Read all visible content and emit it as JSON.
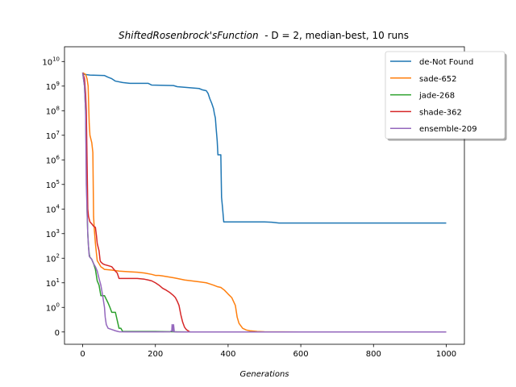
{
  "chart_data": {
    "type": "line",
    "title_italic": "ShiftedRosenbrock'sFunction",
    "title_rest": "  - D = 2, median-best, 10 runs",
    "xlabel": "Generations",
    "ylabel": "",
    "xlim": [
      -50,
      1050
    ],
    "x_ticks": [
      0,
      200,
      400,
      600,
      800,
      1000
    ],
    "y_scale": "symlog",
    "y_ticks": [
      {
        "value": 0,
        "label": "0"
      },
      {
        "value": 1,
        "label": "10",
        "exp": "0"
      },
      {
        "value": 10,
        "label": "10",
        "exp": "1"
      },
      {
        "value": 100,
        "label": "10",
        "exp": "2"
      },
      {
        "value": 1000,
        "label": "10",
        "exp": "3"
      },
      {
        "value": 10000,
        "label": "10",
        "exp": "4"
      },
      {
        "value": 100000,
        "label": "10",
        "exp": "5"
      },
      {
        "value": 1000000,
        "label": "10",
        "exp": "6"
      },
      {
        "value": 10000000,
        "label": "10",
        "exp": "7"
      },
      {
        "value": 100000000,
        "label": "10",
        "exp": "8"
      },
      {
        "value": 1000000000,
        "label": "10",
        "exp": "9"
      },
      {
        "value": 10000000000,
        "label": "10",
        "exp": "10"
      }
    ],
    "legend_position": "top-right",
    "grid": false,
    "series": [
      {
        "name": "de-Not Found",
        "color": "#1f77b4",
        "points": [
          [
            0,
            3500000000.0
          ],
          [
            5,
            3000000000.0
          ],
          [
            20,
            2800000000.0
          ],
          [
            60,
            2700000000.0
          ],
          [
            70,
            2300000000.0
          ],
          [
            80,
            2000000000.0
          ],
          [
            90,
            1600000000.0
          ],
          [
            110,
            1400000000.0
          ],
          [
            130,
            1300000000.0
          ],
          [
            180,
            1300000000.0
          ],
          [
            190,
            1100000000.0
          ],
          [
            250,
            1050000000.0
          ],
          [
            260,
            950000000.0
          ],
          [
            300,
            850000000.0
          ],
          [
            320,
            800000000.0
          ],
          [
            330,
            700000000.0
          ],
          [
            340,
            650000000.0
          ],
          [
            345,
            500000000.0
          ],
          [
            350,
            300000000.0
          ],
          [
            355,
            200000000.0
          ],
          [
            360,
            120000000.0
          ],
          [
            362,
            80000000.0
          ],
          [
            365,
            50000000.0
          ],
          [
            367,
            20000000.0
          ],
          [
            370,
            6000000.0
          ],
          [
            372,
            1600000.0
          ],
          [
            380,
            1600000.0
          ],
          [
            382,
            30000.0
          ],
          [
            385,
            10000.0
          ],
          [
            388,
            3000
          ],
          [
            400,
            3000
          ],
          [
            500,
            3000
          ],
          [
            520,
            2900
          ],
          [
            540,
            2700
          ],
          [
            600,
            2700
          ],
          [
            800,
            2700
          ],
          [
            1000,
            2700
          ]
        ]
      },
      {
        "name": "sade-652",
        "color": "#ff7f0e",
        "points": [
          [
            0,
            3500000000.0
          ],
          [
            8,
            3000000000.0
          ],
          [
            12,
            2000000000.0
          ],
          [
            15,
            1000000000.0
          ],
          [
            18,
            30000000.0
          ],
          [
            20,
            10000000.0
          ],
          [
            25,
            5000000.0
          ],
          [
            28,
            2000000.0
          ],
          [
            30,
            5000
          ],
          [
            32,
            1500
          ],
          [
            35,
            400
          ],
          [
            38,
            150
          ],
          [
            40,
            80
          ],
          [
            45,
            60
          ],
          [
            50,
            45
          ],
          [
            55,
            40
          ],
          [
            60,
            35
          ],
          [
            80,
            33
          ],
          [
            100,
            30
          ],
          [
            130,
            28
          ],
          [
            150,
            27
          ],
          [
            170,
            25
          ],
          [
            190,
            22
          ],
          [
            200,
            20
          ],
          [
            210,
            20
          ],
          [
            220,
            19
          ],
          [
            230,
            18
          ],
          [
            250,
            16
          ],
          [
            260,
            15
          ],
          [
            280,
            13
          ],
          [
            300,
            12
          ],
          [
            320,
            11
          ],
          [
            340,
            10
          ],
          [
            350,
            9
          ],
          [
            360,
            8
          ],
          [
            370,
            7
          ],
          [
            380,
            6.5
          ],
          [
            390,
            5
          ],
          [
            400,
            3.5
          ],
          [
            410,
            2.5
          ],
          [
            420,
            1.2
          ],
          [
            425,
            0.6
          ],
          [
            430,
            0.35
          ],
          [
            440,
            0.15
          ],
          [
            450,
            0.08
          ],
          [
            460,
            0.05
          ],
          [
            480,
            0.02
          ],
          [
            500,
            0.01
          ],
          [
            550,
            0.005
          ],
          [
            600,
            0
          ],
          [
            1000,
            0
          ]
        ]
      },
      {
        "name": "jade-268",
        "color": "#2ca02c",
        "points": [
          [
            0,
            3500000000.0
          ],
          [
            5,
            1000000000.0
          ],
          [
            8,
            100000000.0
          ],
          [
            10,
            1000000.0
          ],
          [
            12,
            10000.0
          ],
          [
            14,
            1000
          ],
          [
            16,
            300
          ],
          [
            18,
            150
          ],
          [
            20,
            110
          ],
          [
            25,
            90
          ],
          [
            30,
            60
          ],
          [
            35,
            35
          ],
          [
            40,
            12
          ],
          [
            45,
            8
          ],
          [
            50,
            3
          ],
          [
            60,
            3
          ],
          [
            70,
            1.5
          ],
          [
            75,
            1
          ],
          [
            80,
            0.8
          ],
          [
            90,
            0.8
          ],
          [
            100,
            0.15
          ],
          [
            105,
            0.15
          ],
          [
            110,
            0.02
          ],
          [
            120,
            0.02
          ],
          [
            150,
            0.02
          ],
          [
            200,
            0.02
          ],
          [
            250,
            0.01
          ],
          [
            300,
            0
          ],
          [
            1000,
            0
          ]
        ]
      },
      {
        "name": "shade-362",
        "color": "#d62728",
        "points": [
          [
            0,
            3500000000.0
          ],
          [
            5,
            2000000000.0
          ],
          [
            8,
            500000000.0
          ],
          [
            10,
            100000000.0
          ],
          [
            12,
            1000000.0
          ],
          [
            14,
            10000.0
          ],
          [
            16,
            5000
          ],
          [
            20,
            3000
          ],
          [
            25,
            2500
          ],
          [
            30,
            2000
          ],
          [
            35,
            1800
          ],
          [
            38,
            800
          ],
          [
            40,
            400
          ],
          [
            45,
            200
          ],
          [
            48,
            80
          ],
          [
            50,
            70
          ],
          [
            55,
            60
          ],
          [
            60,
            55
          ],
          [
            70,
            50
          ],
          [
            80,
            45
          ],
          [
            90,
            30
          ],
          [
            95,
            25
          ],
          [
            100,
            15
          ],
          [
            120,
            15
          ],
          [
            150,
            15
          ],
          [
            170,
            14
          ],
          [
            180,
            13
          ],
          [
            190,
            12
          ],
          [
            200,
            10
          ],
          [
            210,
            8
          ],
          [
            220,
            6
          ],
          [
            230,
            5
          ],
          [
            240,
            4
          ],
          [
            250,
            3
          ],
          [
            255,
            2.5
          ],
          [
            260,
            1.8
          ],
          [
            265,
            1.2
          ],
          [
            270,
            0.7
          ],
          [
            275,
            0.4
          ],
          [
            280,
            0.2
          ],
          [
            285,
            0.1
          ],
          [
            290,
            0.05
          ],
          [
            295,
            0
          ],
          [
            1000,
            0
          ]
        ]
      },
      {
        "name": "ensemble-209",
        "color": "#9467bd",
        "points": [
          [
            0,
            3500000000.0
          ],
          [
            5,
            1000000000.0
          ],
          [
            8,
            100000000.0
          ],
          [
            10,
            100000.0
          ],
          [
            12,
            10000.0
          ],
          [
            14,
            1000
          ],
          [
            16,
            300
          ],
          [
            18,
            120
          ],
          [
            20,
            110
          ],
          [
            25,
            90
          ],
          [
            30,
            60
          ],
          [
            35,
            45
          ],
          [
            40,
            30
          ],
          [
            45,
            15
          ],
          [
            50,
            8
          ],
          [
            55,
            3
          ],
          [
            60,
            1
          ],
          [
            62,
            0.6
          ],
          [
            65,
            0.3
          ],
          [
            70,
            0.15
          ],
          [
            80,
            0.1
          ],
          [
            90,
            0.05
          ],
          [
            95,
            0.03
          ],
          [
            100,
            0.01
          ],
          [
            120,
            0.005
          ],
          [
            150,
            0.005
          ],
          [
            180,
            0.005
          ],
          [
            200,
            0.005
          ],
          [
            220,
            0.005
          ],
          [
            240,
            0.01
          ],
          [
            245,
            0.05
          ],
          [
            246,
            0.3
          ],
          [
            248,
            0.01
          ],
          [
            250,
            0.3
          ],
          [
            252,
            0.01
          ],
          [
            260,
            0
          ],
          [
            1000,
            0
          ]
        ]
      }
    ]
  }
}
